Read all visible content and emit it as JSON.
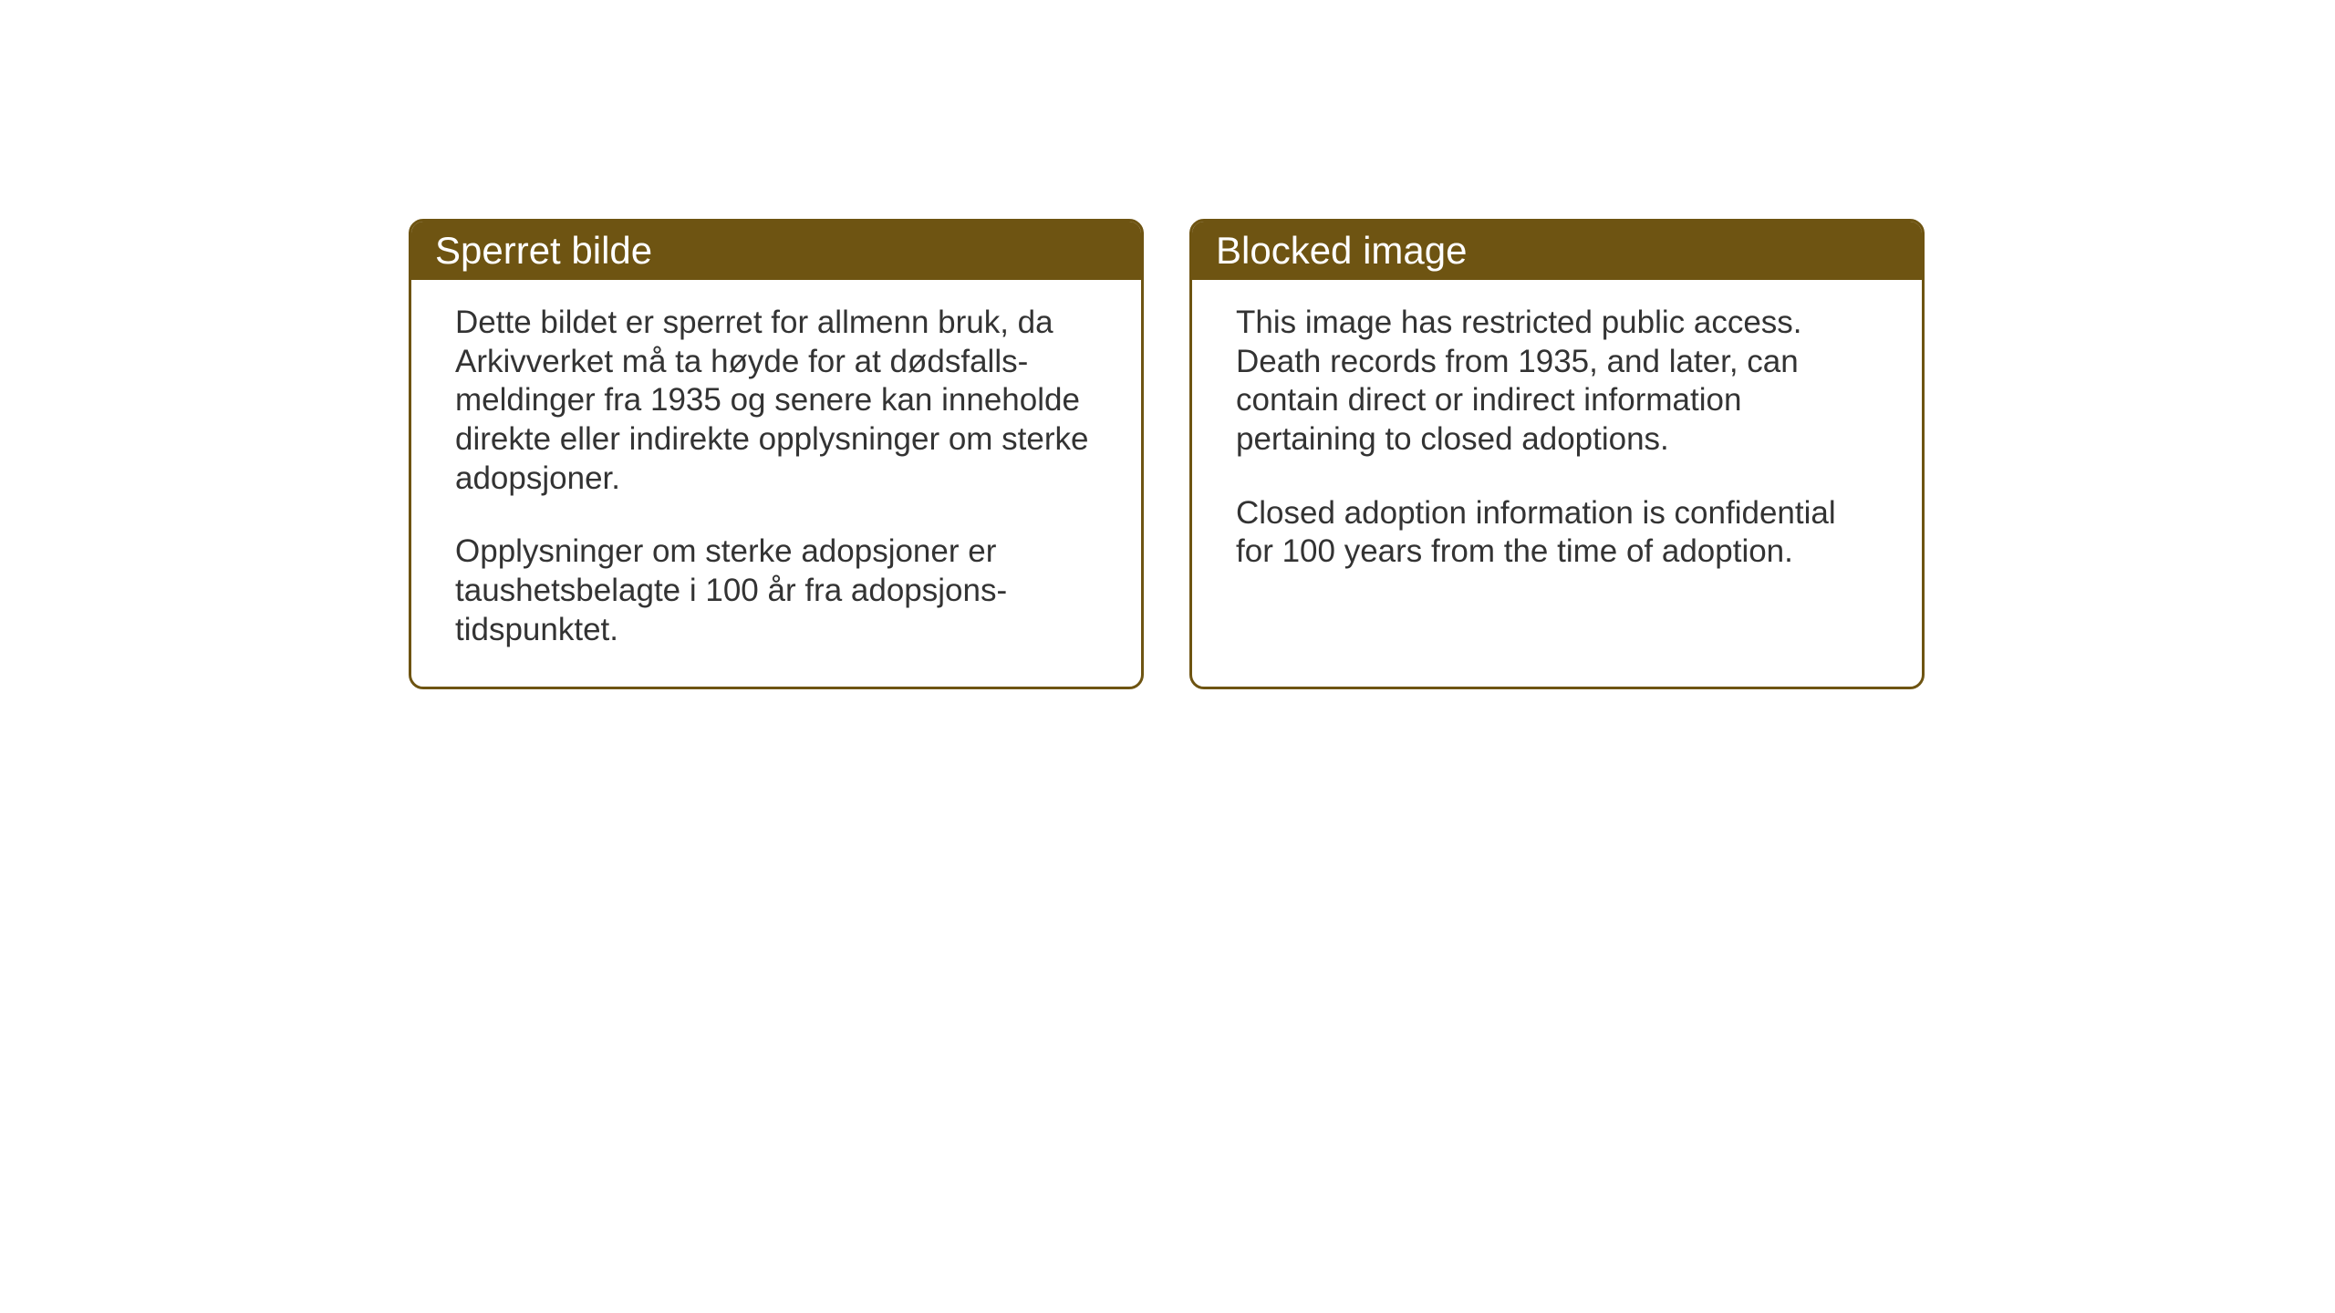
{
  "cards": {
    "norwegian": {
      "title": "Sperret bilde",
      "paragraph1": "Dette bildet er sperret for allmenn bruk, da Arkivverket må ta høyde for at dødsfalls-meldinger fra 1935 og senere kan inneholde direkte eller indirekte opplysninger om sterke adopsjoner.",
      "paragraph2": "Opplysninger om sterke adopsjoner er taushetsbelagte i 100 år fra adopsjons-tidspunktet."
    },
    "english": {
      "title": "Blocked image",
      "paragraph1": "This image has restricted public access. Death records from 1935, and later, can contain direct or indirect information pertaining to closed adoptions.",
      "paragraph2": "Closed adoption information is confidential for 100 years from the time of adoption."
    }
  },
  "styling": {
    "header_bg_color": "#6e5412",
    "header_text_color": "#ffffff",
    "border_color": "#6e5412",
    "body_text_color": "#333333",
    "background_color": "#ffffff",
    "title_fontsize": 42,
    "body_fontsize": 35,
    "border_radius": 16,
    "border_width": 3
  }
}
